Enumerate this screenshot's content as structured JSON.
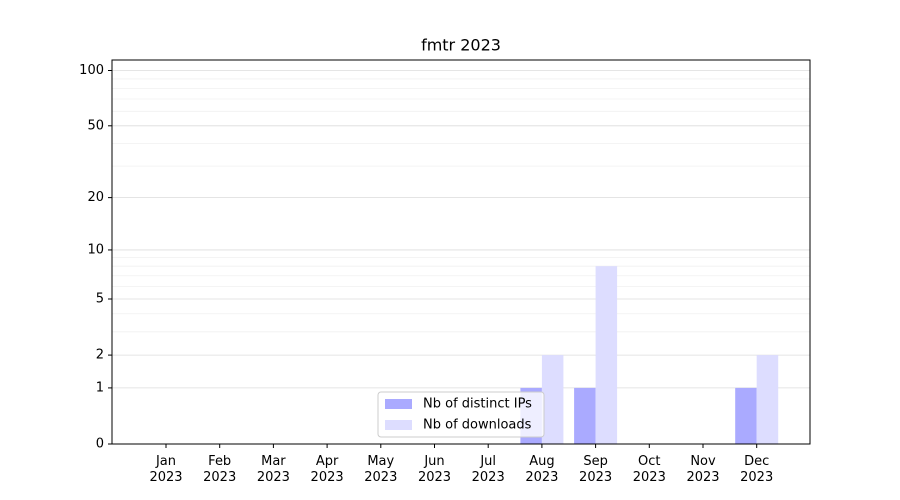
{
  "chart_data": {
    "type": "bar",
    "title": "fmtr 2023",
    "categories": [
      "Jan 2023",
      "Feb 2023",
      "Mar 2023",
      "Apr 2023",
      "May 2023",
      "Jun 2023",
      "Jul 2023",
      "Aug 2023",
      "Sep 2023",
      "Oct 2023",
      "Nov 2023",
      "Dec 2023"
    ],
    "series": [
      {
        "name": "Nb of distinct IPs",
        "color": "#aaaaff",
        "values": [
          0,
          0,
          0,
          0,
          0,
          0,
          0,
          1,
          1,
          0,
          0,
          1
        ]
      },
      {
        "name": "Nb of downloads",
        "color": "#ddddff",
        "values": [
          0,
          0,
          0,
          0,
          0,
          0,
          0,
          2,
          8,
          0,
          0,
          2
        ]
      }
    ],
    "yscale": "log1p",
    "ylim": [
      0,
      114
    ],
    "yticks": [
      0,
      1,
      2,
      5,
      10,
      20,
      50,
      100
    ],
    "yminor": [
      3,
      4,
      6,
      7,
      8,
      9,
      30,
      40,
      60,
      70,
      80,
      90
    ],
    "grid": true,
    "legend": "lower center"
  }
}
